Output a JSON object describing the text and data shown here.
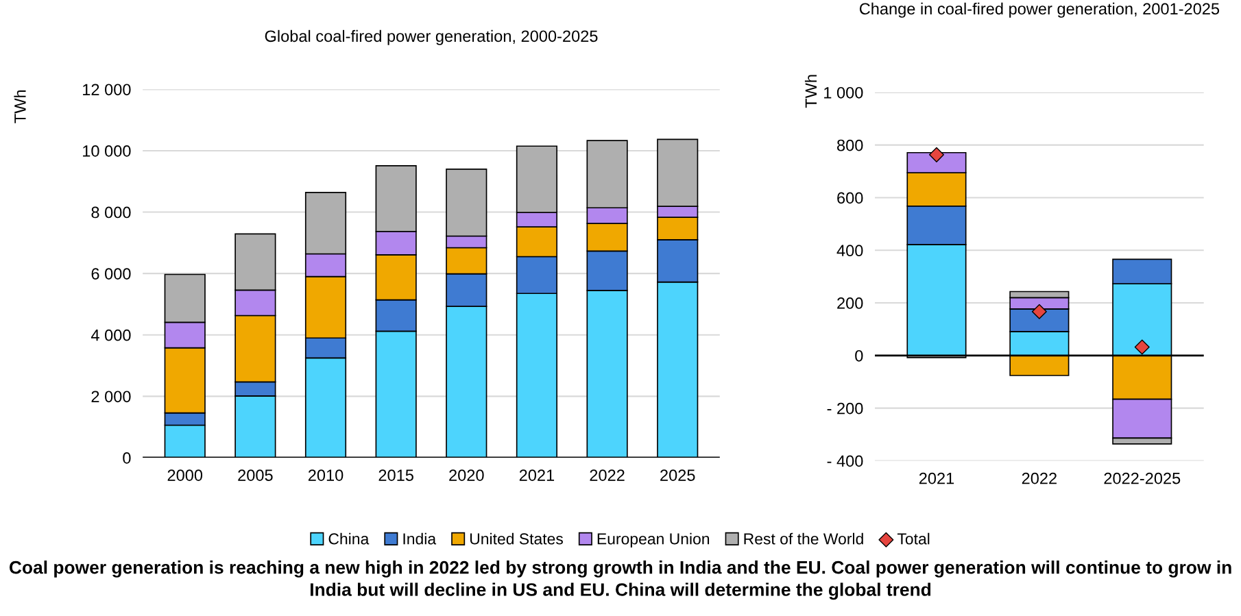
{
  "chart_data": [
    {
      "type": "bar",
      "title": "Global coal-fired power generation, 2000-2025",
      "ylabel": "TWh",
      "stacked": true,
      "grid": "y",
      "legend": "bottom",
      "categories": [
        "2000",
        "2005",
        "2010",
        "2015",
        "2020",
        "2021",
        "2022",
        "2025"
      ],
      "ylim": [
        0,
        12000
      ],
      "yticks": [
        0,
        {
          "value": 2000,
          "label": "2 000"
        },
        {
          "value": 4000,
          "label": "4 000"
        },
        {
          "value": 6000,
          "label": "6 000"
        },
        {
          "value": 8000,
          "label": "8 000"
        },
        {
          "value": 10000,
          "label": "10 000"
        },
        {
          "value": 12000,
          "label": "12 000"
        }
      ],
      "series": [
        {
          "name": "China",
          "color": "#4dd4fd",
          "values": [
            1060,
            2010,
            3250,
            4120,
            4930,
            5350,
            5450,
            5720
          ]
        },
        {
          "name": "India",
          "color": "#3f7bd2",
          "values": [
            400,
            460,
            650,
            1020,
            1060,
            1200,
            1280,
            1380
          ]
        },
        {
          "name": "United States",
          "color": "#f0a800",
          "values": [
            2120,
            2160,
            2000,
            1470,
            850,
            970,
            900,
            730
          ]
        },
        {
          "name": "European Union",
          "color": "#b287ee",
          "values": [
            830,
            830,
            740,
            760,
            380,
            470,
            510,
            360
          ]
        },
        {
          "name": "Rest of the World",
          "color": "#afafaf",
          "values": [
            1560,
            1830,
            2000,
            2140,
            2180,
            2160,
            2190,
            2180
          ]
        }
      ],
      "annotations": [
        "Coal power generation is reaching a new high in 2022 led by strong growth in India and the EU. Coal power generation will continue to grow in India but will decline in US and EU. China will determine the global trend"
      ]
    },
    {
      "type": "bar",
      "title": "Change in coal-fired power generation, 2001-2025",
      "ylabel": "TWh",
      "stacked": true,
      "grid": "y",
      "legend": "bottom",
      "marker": "diamond",
      "categories": [
        "2021",
        "2022",
        "2022-2025"
      ],
      "ylim": [
        -400,
        1000
      ],
      "yticks": [
        {
          "value": -400,
          "label": "- 400"
        },
        {
          "value": -200,
          "label": "- 200"
        },
        0,
        200,
        400,
        600,
        800,
        {
          "value": 1000,
          "label": "1 000"
        }
      ],
      "series": [
        {
          "color": "#4dd4fd",
          "values": [
            422,
            91,
            273
          ]
        },
        {
          "color": "#3f7bd2",
          "values": [
            146,
            86,
            93
          ]
        },
        {
          "color": "#f0a800",
          "values": [
            127,
            -76,
            -166
          ]
        },
        {
          "color": "#b287ee",
          "values": [
            76,
            43,
            -148
          ]
        },
        {
          "color": "#afafaf",
          "values": [
            -8,
            23,
            -22
          ]
        },
        {
          "name": "Total",
          "type": "scatter",
          "color": "#e5453f",
          "values": [
            763,
            167,
            32
          ]
        }
      ]
    }
  ]
}
